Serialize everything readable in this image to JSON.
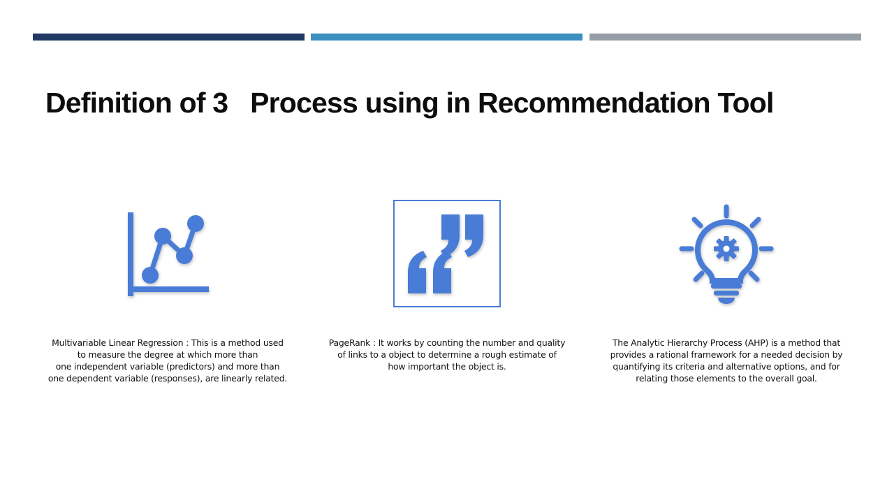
{
  "slide": {
    "title": "Definition of 3   Process using in Recommendation Tool"
  },
  "accent_bars": [
    {
      "color": "#1f3864"
    },
    {
      "color": "#3a8fbf"
    },
    {
      "color": "#959ea6"
    }
  ],
  "columns": [
    {
      "icon": "line-chart-icon",
      "icon_color": "#4a7bd6",
      "caption_lines": [
        "Multivariable Linear Regression : This is a method used",
        "to measure the degree at which more than",
        "one independent variable (predictors) and more than",
        "one dependent variable (responses), are linearly related."
      ]
    },
    {
      "icon": "quotation-marks-icon",
      "icon_color": "#4a7bd6",
      "caption_lines": [
        "PageRank : It works by counting the number and quality",
        "of links to a object to determine a rough estimate of",
        "how important the object  is."
      ]
    },
    {
      "icon": "lightbulb-gear-icon",
      "icon_color": "#4a7bd6",
      "caption_lines": [
        "The Analytic Hierarchy Process (AHP) is a method that",
        "provides a rational framework for a needed decision by",
        "quantifying its criteria and alternative options, and for",
        "relating those elements to the overall goal."
      ]
    }
  ]
}
